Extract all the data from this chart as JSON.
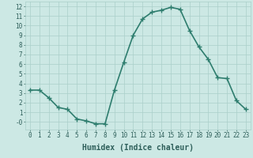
{
  "x": [
    0,
    1,
    2,
    3,
    4,
    5,
    6,
    7,
    8,
    9,
    10,
    11,
    12,
    13,
    14,
    15,
    16,
    17,
    18,
    19,
    20,
    21,
    22,
    23
  ],
  "y": [
    3.3,
    3.3,
    2.5,
    1.5,
    1.3,
    0.3,
    0.1,
    -0.2,
    -0.2,
    3.3,
    6.2,
    9.0,
    10.7,
    11.4,
    11.6,
    11.9,
    11.7,
    9.5,
    7.8,
    6.5,
    4.6,
    4.5,
    2.2,
    1.3
  ],
  "line_color": "#2e7d6e",
  "marker": "+",
  "marker_color": "#2e7d6e",
  "bg_color": "#cce8e4",
  "grid_color": "#aacfca",
  "xlabel": "Humidex (Indice chaleur)",
  "xlim": [
    -0.5,
    23.5
  ],
  "ylim": [
    -0.8,
    12.5
  ],
  "ytick_vals": [
    0,
    1,
    2,
    3,
    4,
    5,
    6,
    7,
    8,
    9,
    10,
    11,
    12
  ],
  "ytick_labels": [
    "-0",
    "1",
    "2",
    "3",
    "4",
    "5",
    "6",
    "7",
    "8",
    "9",
    "10",
    "11",
    "12"
  ],
  "xtick_vals": [
    0,
    1,
    2,
    3,
    4,
    5,
    6,
    7,
    8,
    9,
    10,
    11,
    12,
    13,
    14,
    15,
    16,
    17,
    18,
    19,
    20,
    21,
    22,
    23
  ],
  "font_color": "#2e5f5a",
  "tick_fontsize": 5.5,
  "xlabel_fontsize": 7,
  "line_width": 1.2,
  "marker_size": 4
}
